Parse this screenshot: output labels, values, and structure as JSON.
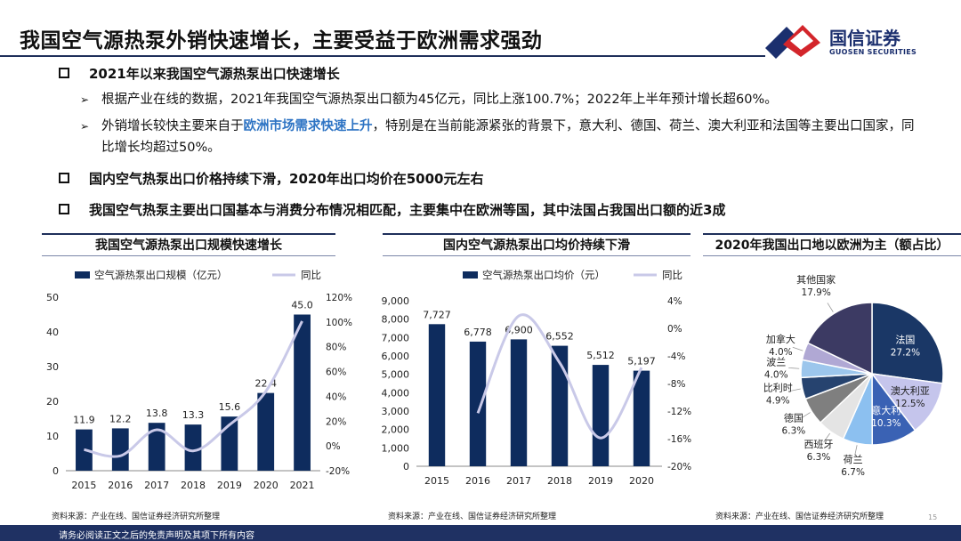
{
  "page": {
    "title": "我国空气源热泵外销快速增长，主要受益于欧洲需求强劲",
    "page_number": "15",
    "footer": "请务必阅读正文之后的免责声明及其项下所有内容"
  },
  "logo": {
    "cn": "国信证券",
    "en": "GUOSEN SECURITIES"
  },
  "bullets": {
    "b1": "2021年以来我国空气源热泵出口快速增长",
    "b1_1": "根据产业在线的数据，2021年我国空气源热泵出口额为45亿元，同比上涨100.7%；2022年上半年预计增长超60%。",
    "b1_2_pre": "外销增长较快主要来自于",
    "b1_2_hl": "欧洲市场需求快速上升",
    "b1_2_post": "，特别是在当前能源紧张的背景下，意大利、德国、荷兰、澳大利亚和法国等主要出口国家，同比增长均超过50%。",
    "b2": "国内空气热泵出口价格持续下滑，2020年出口均价在5000元左右",
    "b3": "我国空气热泵主要出口国基本与消费分布情况相匹配，主要集中在欧洲等国，其中法国占我国出口额的近3成"
  },
  "charts": {
    "c1_title": "我国空气源热泵出口规模快速增长",
    "c2_title": "国内空气源热泵出口均价持续下滑",
    "c3_title": "2020年我国出口地以欧洲为主（额占比）",
    "c1_source": "资料来源：产业在线、国信证券经济研究所整理",
    "c2_source": "资料来源：产业在线、国信证券经济研究所整理",
    "c3_source": "资料来源：产业在线、国信证券经济研究所整理"
  },
  "colors": {
    "bar": "#0e2c5e",
    "line": "#c9c9e8",
    "title_rule": "#1f2f5a",
    "footer": "#1f3163",
    "highlight": "#2e74c4"
  },
  "chart_data": [
    {
      "type": "bar",
      "title": "我国空气源热泵出口规模快速增长",
      "categories": [
        "2015",
        "2016",
        "2017",
        "2018",
        "2019",
        "2020",
        "2021"
      ],
      "series": [
        {
          "name": "空气源热泵出口规模（亿元）",
          "values": [
            11.9,
            12.2,
            13.8,
            13.3,
            15.6,
            22.4,
            45.0
          ],
          "labels": [
            "11.9",
            "12.2",
            "13.8",
            "13.3",
            "15.6",
            "22.4",
            "45.0"
          ],
          "axis": "left"
        },
        {
          "name": "同比",
          "type": "line",
          "values": [
            -3,
            -8,
            13,
            -4,
            17,
            44,
            100.7
          ],
          "axis": "right"
        }
      ],
      "ylim": [
        0,
        50
      ],
      "yticks": [
        "0",
        "10",
        "20",
        "30",
        "40",
        "50"
      ],
      "y2lim": [
        -20,
        120
      ],
      "y2ticks": [
        "-20%",
        "0%",
        "20%",
        "40%",
        "60%",
        "80%",
        "100%",
        "120%"
      ],
      "legend": "top"
    },
    {
      "type": "bar",
      "title": "国内空气源热泵出口均价持续下滑",
      "categories": [
        "2015",
        "2016",
        "2017",
        "2018",
        "2019",
        "2020"
      ],
      "series": [
        {
          "name": "空气源热泵出口均价（元）",
          "values": [
            7727,
            6778,
            6900,
            6552,
            5512,
            5197
          ],
          "labels": [
            "7,727",
            "6,778",
            "6,900",
            "6,552",
            "5,512",
            "5,197"
          ],
          "axis": "left"
        },
        {
          "name": "同比",
          "type": "line",
          "values": [
            null,
            -12.3,
            1.8,
            -5.0,
            -15.9,
            -5.7
          ],
          "axis": "right"
        }
      ],
      "ylim": [
        0,
        9000
      ],
      "yticks": [
        "0",
        "1,000",
        "2,000",
        "3,000",
        "4,000",
        "5,000",
        "6,000",
        "7,000",
        "8,000",
        "9,000"
      ],
      "y2lim": [
        -20,
        4
      ],
      "y2ticks": [
        "-20%",
        "-16%",
        "-12%",
        "-8%",
        "-4%",
        "0%",
        "4%"
      ],
      "legend": "top"
    },
    {
      "type": "pie",
      "title": "2020年我国出口地以欧洲为主（额占比）",
      "slices": [
        {
          "name": "法国",
          "value": 27.2,
          "label": "27.2%",
          "color": "#1a3766",
          "text_color": "#ffffff"
        },
        {
          "name": "澳大利亚",
          "value": 12.5,
          "label": "12.5%",
          "color": "#c5c5ec",
          "text_color": "#222222"
        },
        {
          "name": "意大利",
          "value": 10.3,
          "label": "10.3%",
          "color": "#3a62b4",
          "text_color": "#ffffff"
        },
        {
          "name": "荷兰",
          "value": 6.7,
          "label": "6.7%",
          "color": "#8cc0f0",
          "text_color": "#222222"
        },
        {
          "name": "西班牙",
          "value": 6.3,
          "label": "6.3%",
          "color": "#e4e4e4",
          "text_color": "#222222"
        },
        {
          "name": "德国",
          "value": 6.3,
          "label": "6.3%",
          "color": "#7f7f7f",
          "text_color": "#222222"
        },
        {
          "name": "比利时",
          "value": 4.9,
          "label": "4.9%",
          "color": "#26436f",
          "text_color": "#222222"
        },
        {
          "name": "波兰",
          "value": 4.0,
          "label": "4.0%",
          "color": "#9cc6ec",
          "text_color": "#222222"
        },
        {
          "name": "加拿大",
          "value": 4.0,
          "label": "4.0%",
          "color": "#b0a8d4",
          "text_color": "#222222"
        },
        {
          "name": "其他国家",
          "value": 17.9,
          "label": "17.9%",
          "color": "#3c3a63",
          "text_color": "#222222"
        }
      ]
    }
  ]
}
